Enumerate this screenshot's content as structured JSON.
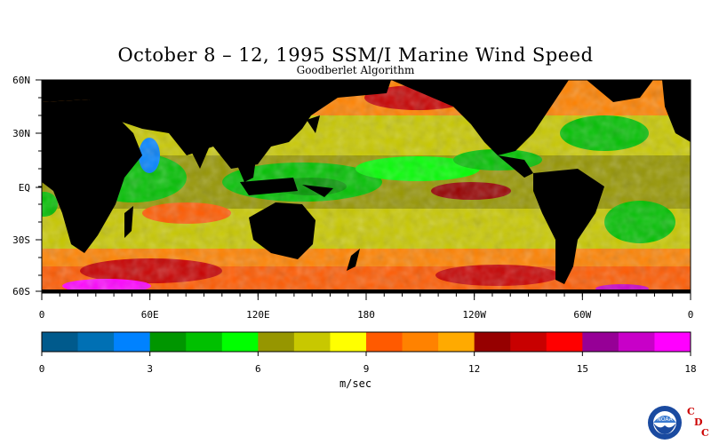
{
  "title": "October 8 – 12, 1995 SSM/I Marine Wind Speed",
  "subtitle": "Goodberlet Algorithm",
  "lat_labels": [
    "60N",
    "30N",
    "EQ",
    "30S",
    "60S"
  ],
  "lon_labels": [
    "0",
    "60E",
    "120E",
    "180",
    "120W",
    "60W",
    "0"
  ],
  "colorbar": {
    "colors": [
      "#005a8c",
      "#0070b4",
      "#0082ff",
      "#009600",
      "#00c000",
      "#00ff00",
      "#969600",
      "#c8c800",
      "#ffff00",
      "#ff5a00",
      "#ff8200",
      "#ffaa00",
      "#960000",
      "#c80000",
      "#ff0000",
      "#960096",
      "#c800c8",
      "#ff00ff"
    ],
    "tick_labels": [
      "0",
      "3",
      "6",
      "9",
      "12",
      "15",
      "18"
    ],
    "unit": "m/sec"
  },
  "logo": {
    "agency": "NOAA",
    "letters": [
      "C",
      "D",
      "C"
    ]
  },
  "palette": {
    "land": "#000000",
    "logo_blue": "#1a4aa0",
    "cdc_red": "#cc0000"
  }
}
